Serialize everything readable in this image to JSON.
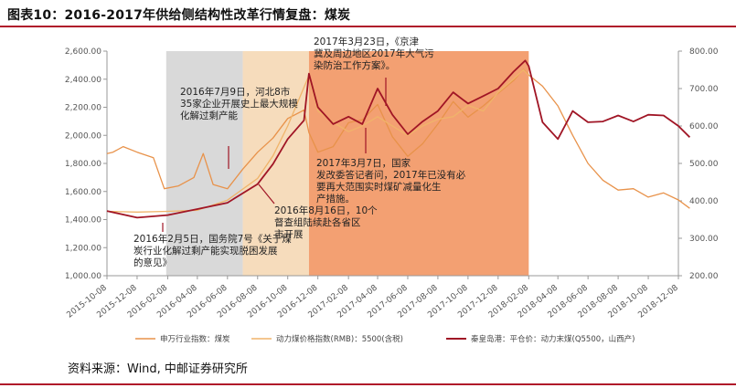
{
  "header": {
    "title": "图表10：2016-2017年供给侧结构性改革行情复盘：煤炭"
  },
  "footer": {
    "source": "资料来源：Wind, 中邮证券研究所"
  },
  "colors": {
    "accent": "#b0192a",
    "index_line": "#e8924a",
    "price_line": "#f0b46a",
    "port_line": "#a01525",
    "shade_gray": "#d9d9d9",
    "shade_tan": "#f6dcbc",
    "shade_orange": "#f3a072"
  },
  "chart_data": {
    "type": "line",
    "x_ticks": [
      "2015-10-08",
      "2015-12-08",
      "2016-02-08",
      "2016-04-08",
      "2016-06-08",
      "2016-08-08",
      "2016-10-08",
      "2016-12-08",
      "2017-02-08",
      "2017-04-08",
      "2017-06-08",
      "2017-08-08",
      "2017-10-08",
      "2017-12-08",
      "2018-02-08",
      "2018-04-08",
      "2018-06-08",
      "2018-08-08",
      "2018-10-08",
      "2018-12-08"
    ],
    "y_left_ticks": [
      "1,000.00",
      "1,200.00",
      "1,400.00",
      "1,600.00",
      "1,800.00",
      "2,000.00",
      "2,200.00",
      "2,400.00",
      "2,600.00"
    ],
    "y_right_ticks": [
      "200.00",
      "300.00",
      "400.00",
      "500.00",
      "600.00",
      "700.00",
      "800.00"
    ],
    "ylim_left": [
      1000,
      2600
    ],
    "ylim_right": [
      200,
      800
    ],
    "shaded_periods": [
      {
        "from": "2016-02-05",
        "to": "2016-07-09",
        "color": "gray"
      },
      {
        "from": "2016-07-09",
        "to": "2016-11-20",
        "color": "tan"
      },
      {
        "from": "2016-11-20",
        "to": "2018-02-08",
        "color": "orange"
      }
    ],
    "series": [
      {
        "name": "申万行业指数：煤炭",
        "axis": "left",
        "x": [
          "2015-10-08",
          "2015-10-20",
          "2015-11-10",
          "2015-12-08",
          "2016-01-10",
          "2016-02-01",
          "2016-03-01",
          "2016-04-01",
          "2016-04-20",
          "2016-05-10",
          "2016-06-08",
          "2016-07-09",
          "2016-08-08",
          "2016-09-08",
          "2016-10-08",
          "2016-11-10",
          "2016-11-20",
          "2016-12-08",
          "2017-01-08",
          "2017-02-08",
          "2017-03-08",
          "2017-04-08",
          "2017-05-08",
          "2017-06-08",
          "2017-07-08",
          "2017-08-08",
          "2017-09-08",
          "2017-10-08",
          "2017-11-08",
          "2017-12-08",
          "2018-01-08",
          "2018-01-28",
          "2018-02-08",
          "2018-03-08",
          "2018-04-08",
          "2018-05-08",
          "2018-06-08",
          "2018-07-08",
          "2018-08-08",
          "2018-09-08",
          "2018-10-08",
          "2018-11-08",
          "2018-12-08",
          "2018-12-31"
        ],
        "y": [
          1870,
          1880,
          1920,
          1880,
          1840,
          1620,
          1640,
          1700,
          1870,
          1650,
          1620,
          1760,
          1880,
          1980,
          2120,
          2180,
          2020,
          1880,
          1920,
          2090,
          2110,
          2220,
          1990,
          1850,
          1940,
          2080,
          2240,
          2130,
          2210,
          2300,
          2390,
          2470,
          2430,
          2350,
          2210,
          2000,
          1800,
          1680,
          1610,
          1620,
          1560,
          1590,
          1540,
          1480
        ]
      },
      {
        "name": "动力煤价格指数(RMB)：5500(含税)",
        "axis": "right",
        "x": [
          "2015-10-08",
          "2015-12-08",
          "2016-02-08",
          "2016-04-08",
          "2016-06-08",
          "2016-08-08",
          "2016-09-08",
          "2016-10-08",
          "2016-11-20",
          "2016-12-08",
          "2017-01-08",
          "2017-02-08",
          "2017-03-08",
          "2017-04-08",
          "2017-05-08",
          "2017-06-08",
          "2017-07-08",
          "2017-08-08",
          "2017-09-08",
          "2017-10-08",
          "2017-11-08",
          "2017-12-08",
          "2018-01-08",
          "2018-01-28",
          "2018-02-08"
        ],
        "y": [
          372,
          370,
          372,
          375,
          402,
          460,
          520,
          600,
          735,
          640,
          610,
          585,
          600,
          625,
          600,
          575,
          600,
          618,
          625,
          655,
          640,
          690,
          725,
          750,
          735
        ]
      },
      {
        "name": "秦皇岛港：平仓价：动力末煤(Q5500，山西产)",
        "axis": "right",
        "x": [
          "2015-10-08",
          "2015-12-08",
          "2016-02-08",
          "2016-04-08",
          "2016-06-08",
          "2016-08-08",
          "2016-09-08",
          "2016-10-08",
          "2016-11-10",
          "2016-11-20",
          "2016-12-08",
          "2017-01-08",
          "2017-02-08",
          "2017-03-08",
          "2017-04-08",
          "2017-05-08",
          "2017-06-08",
          "2017-07-08",
          "2017-08-08",
          "2017-09-08",
          "2017-10-08",
          "2017-11-08",
          "2017-12-08",
          "2018-01-08",
          "2018-02-01",
          "2018-02-08",
          "2018-03-08",
          "2018-04-08",
          "2018-05-08",
          "2018-06-08",
          "2018-07-08",
          "2018-08-08",
          "2018-09-08",
          "2018-10-08",
          "2018-11-08",
          "2018-12-08",
          "2018-12-31"
        ],
        "y": [
          373,
          355,
          362,
          378,
          395,
          445,
          498,
          565,
          615,
          740,
          650,
          605,
          625,
          605,
          700,
          630,
          578,
          612,
          640,
          690,
          660,
          680,
          700,
          745,
          775,
          760,
          610,
          565,
          640,
          610,
          612,
          628,
          612,
          630,
          628,
          600,
          570
        ]
      }
    ],
    "annotations": [
      "2016年7月9日，河北8市35家企业开展史上最大规模化解过剩产能",
      "2017年3月23日，《京津冀及周边地区2017年大气污染防治工作方案》。",
      "2017年3月7日，国家发改委答记者问，2017年已没有必要再大范围实时煤矿减量化生产措施。",
      "2016年8月16日，10个督查组陆续赴各省区市开展",
      "2016年2月5日，国务院7号《关于煤炭行业化解过剩产能实现脱困发展的意见》"
    ]
  }
}
